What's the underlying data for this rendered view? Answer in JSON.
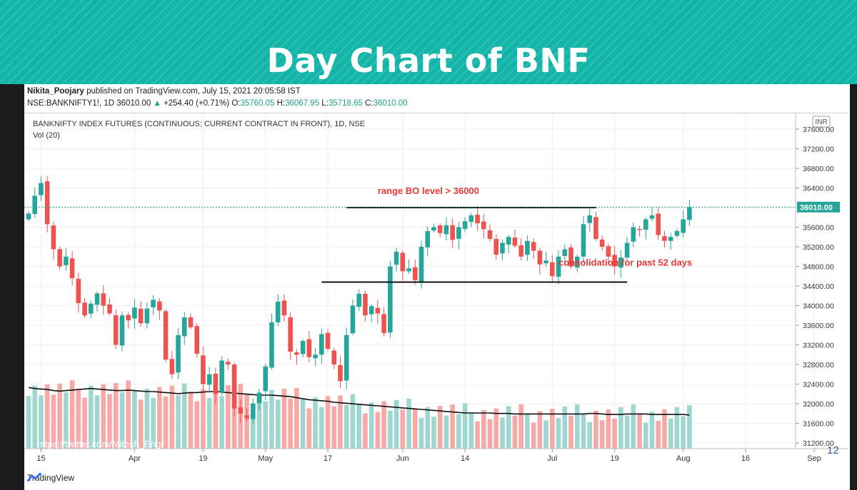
{
  "slide": {
    "title": "Day Chart of BNF",
    "page_number": "12"
  },
  "header": {
    "author": "Nikita_Poojary",
    "published_text": "published on TradingView.com, July 15, 2021 20:05:58 IST",
    "symbol": "NSE:BANKNIFTY1!, 1D",
    "last": "36010.00",
    "change": "+254.40 (+0.71%)",
    "o_label": "O:",
    "o": "35760.05",
    "h_label": "H:",
    "h": "36067.95",
    "l_label": "L:",
    "l": "35718.65",
    "c_label": "C:",
    "c": "36010.00"
  },
  "footer": {
    "brand": "TradingView",
    "watermark": "https://twitter.com/Mitesh_Engr"
  },
  "chart_data": {
    "type": "candlestick",
    "title": "BANKNIFTY INDEX FUTURES (CONTINUOUS: CURRENT CONTRACT IN FRONT), 1D, NSE",
    "subtitle": "Vol (20)",
    "currency_badge": "INR",
    "ylim": [
      31200,
      37600
    ],
    "y_ticks": [
      "37600.00",
      "37200.00",
      "36800.00",
      "36400.00",
      "36000.00",
      "35600.00",
      "35200.00",
      "34800.00",
      "34400.00",
      "34000.00",
      "33600.00",
      "33200.00",
      "32800.00",
      "32400.00",
      "32000.00",
      "31600.00",
      "31200.00"
    ],
    "last_price_label": "36010.00",
    "last_price": 36010,
    "x_ticks": [
      {
        "label": "15",
        "index": 2
      },
      {
        "label": "Apr",
        "index": 17
      },
      {
        "label": "19",
        "index": 28
      },
      {
        "label": "May",
        "index": 38
      },
      {
        "label": "17",
        "index": 48
      },
      {
        "label": "Jun",
        "index": 60
      },
      {
        "label": "14",
        "index": 70
      },
      {
        "label": "Jul",
        "index": 84
      },
      {
        "label": "19",
        "index": 94
      },
      {
        "label": "Aug",
        "index": 105
      },
      {
        "label": "16",
        "index": 115
      },
      {
        "label": "Sep",
        "index": 126
      }
    ],
    "candles_close": [
      35880,
      36240,
      36500,
      35660,
      35150,
      34800,
      35000,
      34560,
      34050,
      33800,
      34040,
      34250,
      34000,
      33840,
      33200,
      33800,
      33700,
      33960,
      33640,
      33940,
      34120,
      33900,
      32900,
      32600,
      33400,
      33760,
      33560,
      33020,
      32400,
      32600,
      32200,
      32880,
      32800,
      31900,
      31800,
      31700,
      32000,
      32220,
      32760,
      33660,
      34080,
      33800,
      33060,
      33000,
      33280,
      32950,
      33000,
      33420,
      33120,
      32800,
      32460,
      33400,
      34000,
      34240,
      33800,
      33990,
      33840,
      33440,
      34800,
      35100,
      34700,
      34760,
      34520,
      35200,
      35520,
      35600,
      35480,
      35640,
      35340,
      35600,
      35720,
      35840,
      35680,
      35560,
      35360,
      35040,
      35280,
      35400,
      35220,
      35000,
      35320,
      35120,
      34840,
      34920,
      34600,
      35000,
      35150,
      34800,
      35000,
      35660,
      35840,
      35360,
      35200,
      35000,
      34800,
      34980,
      35280,
      35600,
      35560,
      35760,
      35840,
      35440,
      35320,
      35400,
      35520,
      35760,
      36010
    ],
    "resistance": {
      "label": "range BO level > 36000",
      "level": 36000
    },
    "support": {
      "label": "consolidation for past 52 days",
      "level": 34480
    },
    "volume_ma": [
      32400,
      32380,
      32370,
      32360,
      32340,
      32330,
      32340,
      32350,
      32360,
      32370,
      32380,
      32370,
      32360,
      32350,
      32340,
      32340,
      32350,
      32340,
      32330,
      32320,
      32320,
      32310,
      32300,
      32290,
      32280,
      32290,
      32300,
      32300,
      32310,
      32320,
      32320,
      32310,
      32300,
      32290,
      32280,
      32270,
      32260,
      32250,
      32250,
      32250,
      32240,
      32230,
      32220,
      32200,
      32180,
      32160,
      32150,
      32140,
      32130,
      32110,
      32100,
      32090,
      32080,
      32070,
      32060,
      32050,
      32040,
      32030,
      32020,
      32010,
      32000,
      31990,
      31980,
      31970,
      31960,
      31950,
      31940,
      31930,
      31920,
      31910,
      31900,
      31900,
      31900,
      31900,
      31900,
      31890,
      31890,
      31890,
      31880,
      31880,
      31880,
      31880,
      31880,
      31880,
      31880,
      31880,
      31880,
      31880,
      31880,
      31880,
      31890,
      31890,
      31880,
      31870,
      31870,
      31870,
      31880,
      31880,
      31880,
      31880,
      31870,
      31870,
      31870,
      31870,
      31870,
      31870,
      31860
    ]
  }
}
